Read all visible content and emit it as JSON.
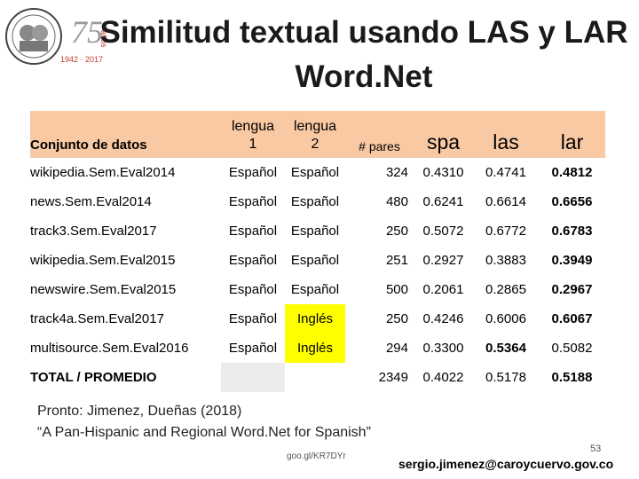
{
  "slide": {
    "title_line1": "Similitud textual usando LAS y LAR",
    "title_line2": "Word.Net"
  },
  "logo": {
    "years": "75",
    "years_label": "años",
    "range": "1942 · 2017",
    "icon": "institution-seal-icon"
  },
  "table": {
    "headers": {
      "dataset": "Conjunto de datos",
      "lengua1_top": "lengua",
      "lengua1_bottom": "1",
      "lengua2_top": "lengua",
      "lengua2_bottom": "2",
      "pares": "# pares",
      "spa": "spa",
      "las": "las",
      "lar": "lar"
    },
    "rows": [
      {
        "dataset": "wikipedia.Sem.Eval2014",
        "l1": "Español",
        "l2": "Español",
        "pares": "324",
        "spa": "0.4310",
        "las": "0.4741",
        "lar": "0.4812",
        "best": "lar",
        "l2_highlight": false
      },
      {
        "dataset": "news.Sem.Eval2014",
        "l1": "Español",
        "l2": "Español",
        "pares": "480",
        "spa": "0.6241",
        "las": "0.6614",
        "lar": "0.6656",
        "best": "lar",
        "l2_highlight": false
      },
      {
        "dataset": "track3.Sem.Eval2017",
        "l1": "Español",
        "l2": "Español",
        "pares": "250",
        "spa": "0.5072",
        "las": "0.6772",
        "lar": "0.6783",
        "best": "lar",
        "l2_highlight": false
      },
      {
        "dataset": "wikipedia.Sem.Eval2015",
        "l1": "Español",
        "l2": "Español",
        "pares": "251",
        "spa": "0.2927",
        "las": "0.3883",
        "lar": "0.3949",
        "best": "lar",
        "l2_highlight": false
      },
      {
        "dataset": "newswire.Sem.Eval2015",
        "l1": "Español",
        "l2": "Español",
        "pares": "500",
        "spa": "0.2061",
        "las": "0.2865",
        "lar": "0.2967",
        "best": "lar",
        "l2_highlight": false
      },
      {
        "dataset": "track4a.Sem.Eval2017",
        "l1": "Español",
        "l2": "Inglés",
        "pares": "250",
        "spa": "0.4246",
        "las": "0.6006",
        "lar": "0.6067",
        "best": "lar",
        "l2_highlight": true
      },
      {
        "dataset": "multisource.Sem.Eval2016",
        "l1": "Español",
        "l2": "Inglés",
        "pares": "294",
        "spa": "0.3300",
        "las": "0.5364",
        "lar": "0.5082",
        "best": "las",
        "l2_highlight": true
      }
    ],
    "total": {
      "label": "TOTAL / PROMEDIO",
      "pares": "2349",
      "spa": "0.4022",
      "las": "0.5178",
      "lar": "0.5188"
    }
  },
  "reference": {
    "line1": "Pronto:   Jimenez, Dueñas (2018)",
    "line2": "“A Pan-Hispanic and Regional Word.Net for Spanish”"
  },
  "footer": {
    "short_url": "goo.gl/KR7DYr",
    "email": "sergio.jimenez@caroycuervo.gov.co",
    "page_number": "53"
  }
}
